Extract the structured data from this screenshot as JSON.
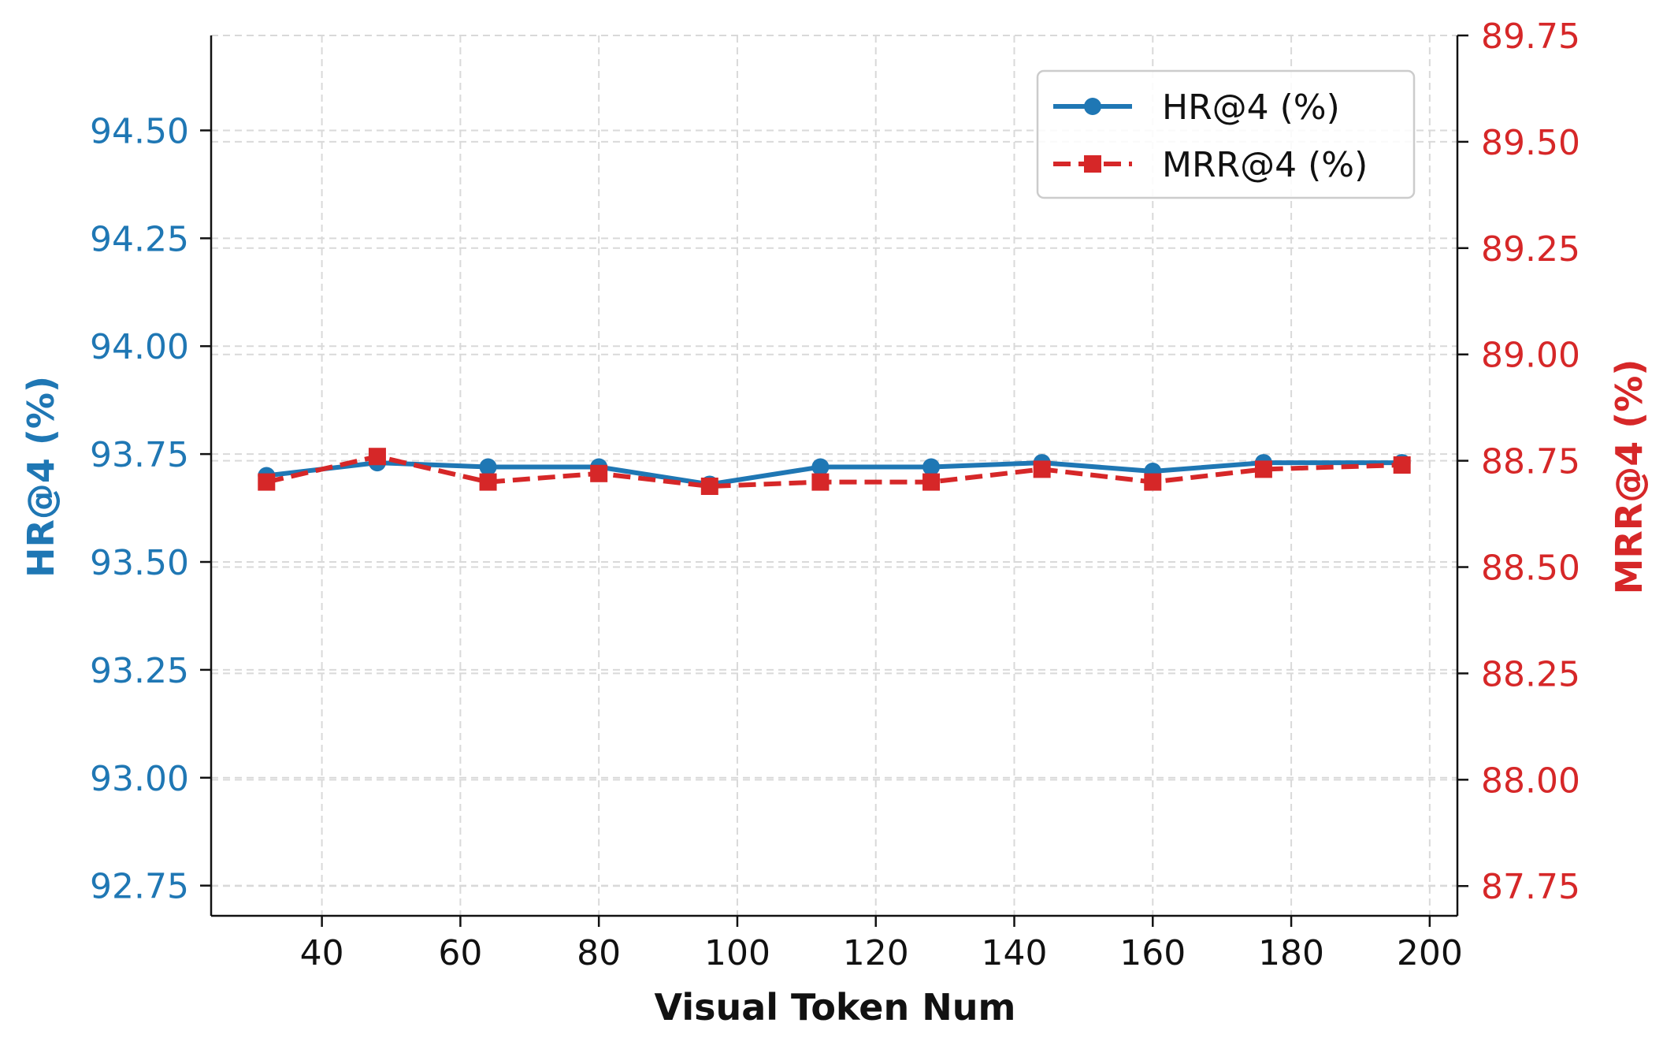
{
  "chart_data": {
    "type": "line",
    "xlabel": "Visual Token Num",
    "ylabel_left": "HR@4 (%)",
    "ylabel_right": "MRR@4 (%)",
    "x": [
      32,
      48,
      64,
      80,
      96,
      112,
      128,
      144,
      160,
      176,
      196
    ],
    "xlim": [
      24,
      204
    ],
    "xticks": [
      40,
      60,
      80,
      100,
      120,
      140,
      160,
      180,
      200
    ],
    "ylim_left": [
      92.68,
      94.72
    ],
    "yticks_left": [
      "92.75",
      "93.00",
      "93.25",
      "93.50",
      "93.75",
      "94.00",
      "94.25",
      "94.50"
    ],
    "ylim_right": [
      87.68,
      89.75
    ],
    "yticks_right": [
      "87.75",
      "88.00",
      "88.25",
      "88.50",
      "88.75",
      "89.00",
      "89.25",
      "89.50",
      "89.75"
    ],
    "grid": true,
    "legend_position": "top-right",
    "series": [
      {
        "name": "HR@4 (%)",
        "axis": "left",
        "color": "#1f77b4",
        "marker": "circle",
        "linestyle": "solid",
        "values": [
          93.7,
          93.73,
          93.72,
          93.72,
          93.68,
          93.72,
          93.72,
          93.73,
          93.71,
          93.73,
          93.73
        ]
      },
      {
        "name": "MRR@4 (%)",
        "axis": "right",
        "color": "#d62728",
        "marker": "square",
        "linestyle": "dashed",
        "values": [
          88.7,
          88.76,
          88.7,
          88.72,
          88.69,
          88.7,
          88.7,
          88.73,
          88.7,
          88.73,
          88.74
        ]
      }
    ]
  }
}
